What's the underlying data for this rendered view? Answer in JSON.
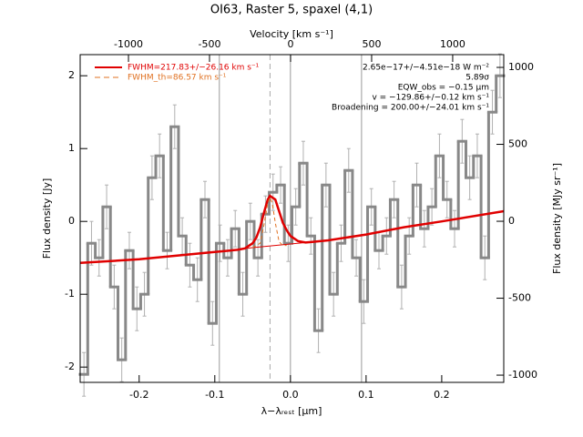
{
  "chart_data": {
    "type": "spectrum",
    "title": "OI63, Raster 5, spaxel (4,1)",
    "x_label": "λ−λᵣₑₛₜ [μm]",
    "y_label": "Flux density [Jy]",
    "y2_label": "Flux density [MJy sr⁻¹]",
    "x2_label": "Velocity [km s⁻¹]",
    "xlim": [
      -0.278,
      0.282
    ],
    "xticks": [
      -0.2,
      -0.1,
      {
        "value": 0,
        "label": "0.0"
      },
      0.1,
      0.2
    ],
    "ylim": [
      -2.21,
      2.29
    ],
    "yticks": [
      -2,
      -1,
      0,
      1,
      2
    ],
    "x2lim": [
      -1298,
      1315
    ],
    "x2ticks": [
      -1000,
      -500,
      0,
      500,
      1000
    ],
    "y2lim": [
      -1047,
      1083
    ],
    "y2ticks": [
      -1000,
      -500,
      0,
      500,
      1000
    ],
    "vlines": [
      -0.094,
      0,
      0.094
    ],
    "vline_dashed": -0.027,
    "spectrum": {
      "color": "#888888",
      "error_color": "#b0b0b0",
      "x": [
        -0.273,
        -0.263,
        -0.253,
        -0.243,
        -0.233,
        -0.223,
        -0.213,
        -0.203,
        -0.193,
        -0.183,
        -0.173,
        -0.163,
        -0.153,
        -0.143,
        -0.133,
        -0.123,
        -0.113,
        -0.103,
        -0.093,
        -0.083,
        -0.073,
        -0.063,
        -0.053,
        -0.043,
        -0.033,
        -0.023,
        -0.013,
        -0.003,
        0.007,
        0.017,
        0.027,
        0.037,
        0.047,
        0.057,
        0.067,
        0.077,
        0.087,
        0.097,
        0.107,
        0.117,
        0.127,
        0.137,
        0.147,
        0.157,
        0.167,
        0.177,
        0.187,
        0.197,
        0.207,
        0.217,
        0.227,
        0.237,
        0.247,
        0.257,
        0.267,
        0.277
      ],
      "values": [
        -2.1,
        -0.3,
        -0.5,
        0.2,
        -0.9,
        -1.9,
        -0.4,
        -1.2,
        -1.0,
        0.6,
        0.9,
        -0.4,
        1.3,
        -0.2,
        -0.6,
        -0.8,
        0.3,
        -1.4,
        -0.3,
        -0.5,
        -0.1,
        -1.0,
        0.0,
        -0.5,
        0.1,
        0.4,
        0.5,
        -0.3,
        0.2,
        0.8,
        -0.2,
        -1.5,
        0.5,
        -1.0,
        -0.3,
        0.7,
        -0.5,
        -1.1,
        0.2,
        -0.4,
        -0.2,
        0.3,
        -0.9,
        -0.2,
        0.5,
        -0.1,
        0.2,
        0.9,
        0.3,
        -0.1,
        1.1,
        0.6,
        0.9,
        -0.5,
        1.5,
        2.0
      ],
      "errors": [
        0.3,
        0.3,
        0.25,
        0.3,
        0.3,
        0.3,
        0.25,
        0.3,
        0.3,
        0.3,
        0.3,
        0.25,
        0.3,
        0.25,
        0.3,
        0.3,
        0.25,
        0.3,
        0.25,
        0.25,
        0.25,
        0.3,
        0.25,
        0.25,
        0.25,
        0.25,
        0.25,
        0.25,
        0.25,
        0.3,
        0.25,
        0.3,
        0.3,
        0.3,
        0.25,
        0.3,
        0.25,
        0.3,
        0.25,
        0.25,
        0.25,
        0.25,
        0.3,
        0.25,
        0.3,
        0.25,
        0.25,
        0.3,
        0.25,
        0.25,
        0.3,
        0.3,
        0.3,
        0.3,
        0.3,
        0.3
      ]
    },
    "series": [
      {
        "name": "FWHM=217.83+/−26.16 km s⁻¹",
        "color": "#e00000",
        "style": "solid",
        "x": [
          -0.278,
          -0.2,
          -0.1,
          -0.07,
          -0.06,
          -0.05,
          -0.045,
          -0.04,
          -0.035,
          -0.03,
          -0.027,
          -0.02,
          -0.015,
          -0.01,
          -0.005,
          0,
          0.01,
          0.02,
          0.03,
          0.05,
          0.1,
          0.15,
          0.2,
          0.282
        ],
        "values": [
          -0.57,
          -0.52,
          -0.42,
          -0.39,
          -0.37,
          -0.3,
          -0.22,
          -0.08,
          0.12,
          0.3,
          0.35,
          0.3,
          0.14,
          -0.02,
          -0.12,
          -0.2,
          -0.27,
          -0.29,
          -0.28,
          -0.26,
          -0.18,
          -0.08,
          0.0,
          0.14
        ]
      },
      {
        "name": "FWHM_th=86.57 km s⁻¹",
        "color": "#e07020",
        "style": "dashed",
        "x": [
          -0.05,
          -0.04,
          -0.035,
          -0.03,
          -0.027,
          -0.024,
          -0.02,
          -0.015,
          -0.01,
          -0.005
        ],
        "values": [
          -0.36,
          -0.3,
          -0.05,
          0.25,
          0.33,
          0.25,
          -0.02,
          -0.28,
          -0.33,
          -0.33
        ]
      }
    ],
    "baseline": {
      "color": "#e00000",
      "x": [
        -0.278,
        -0.2,
        -0.1,
        -0.05,
        0,
        0.05,
        0.1,
        0.15,
        0.2,
        0.282
      ],
      "values": [
        -0.57,
        -0.52,
        -0.42,
        -0.36,
        -0.31,
        -0.26,
        -0.18,
        -0.08,
        0.0,
        0.14
      ]
    },
    "annotations": [
      "2.65e−17+/−4.51e−18 W m⁻²",
      "5.89σ",
      "EQW_obs = −0.15 μm",
      "v = −129.86+/−0.12 km s⁻¹",
      "Broadening = 200.00+/−24.01 km s⁻¹"
    ],
    "legend": "upper left"
  }
}
